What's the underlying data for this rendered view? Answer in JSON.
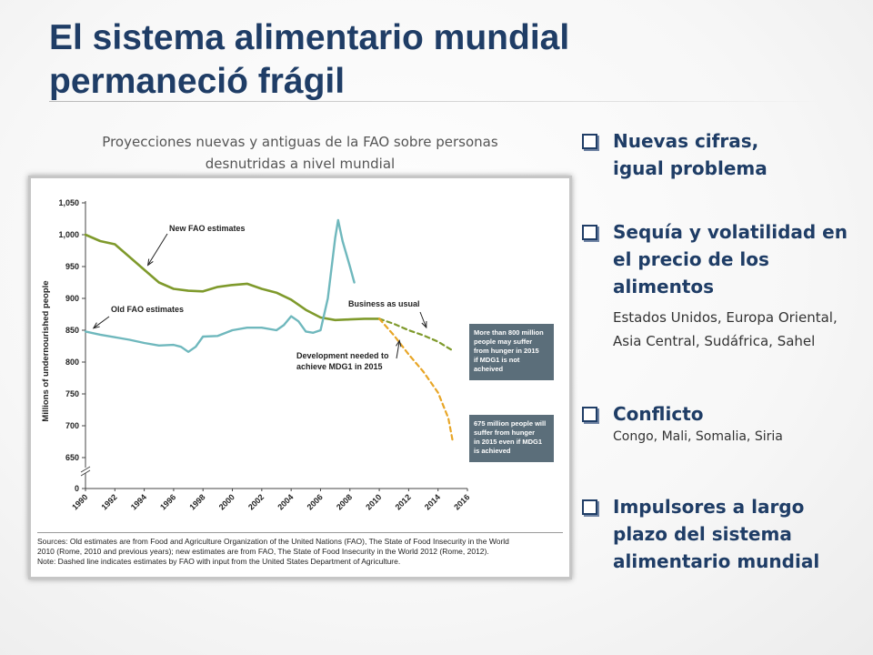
{
  "slide": {
    "title_line1": "El sistema alimentario mundial",
    "title_line2": "permaneció frágil",
    "subtitle_line1": "Proyecciones nuevas y antiguas de la FAO sobre personas",
    "subtitle_line2": "desnutridas a nivel mundial"
  },
  "bullets": [
    {
      "head_lines": [
        "Nuevas cifras,",
        "igual problema"
      ],
      "detail_lines": []
    },
    {
      "head_lines": [
        "Sequía y volatilidad en",
        "el precio de los",
        "alimentos"
      ],
      "detail_lines": [
        "Estados Unidos, Europa Oriental,",
        "Asia Central, Sudáfrica, Sahel"
      ]
    },
    {
      "head_lines": [
        "Conflicto"
      ],
      "detail_lines": [
        "Congo, Mali, Somalia, Siria"
      ]
    },
    {
      "head_lines": [
        "Impulsores a largo",
        "plazo del sistema",
        "alimentario mundial"
      ],
      "detail_lines": []
    }
  ],
  "colors": {
    "title": "#1f3d66",
    "new_series": "#7f9a2c",
    "old_series": "#6fb8bd",
    "mdg_series": "#e8a627",
    "callout_box": "#5b6e7a",
    "bullet_box": "#1f3d66"
  },
  "icons": {
    "bullet": "square-checkbox-icon"
  },
  "chart_data": {
    "type": "line",
    "ylabel": "Millions of undernourished people",
    "xlabel": "",
    "ylim": [
      650,
      1050
    ],
    "y_ticks": [
      "1,050",
      "1,000",
      "950",
      "900",
      "850",
      "800",
      "750",
      "700",
      "650",
      "0"
    ],
    "x_ticks": [
      "1990",
      "1992",
      "1994",
      "1996",
      "1998",
      "2000",
      "2002",
      "2004",
      "2006",
      "2008",
      "2010",
      "2012",
      "2014",
      "2016"
    ],
    "axis_break": true,
    "grid": false,
    "series": [
      {
        "key": "new",
        "name": "New FAO estimates",
        "dashed": false,
        "points": [
          [
            1990,
            1000
          ],
          [
            1991,
            990
          ],
          [
            1992,
            985
          ],
          [
            1993,
            965
          ],
          [
            1994,
            945
          ],
          [
            1995,
            925
          ],
          [
            1996,
            915
          ],
          [
            1997,
            912
          ],
          [
            1998,
            911
          ],
          [
            1999,
            918
          ],
          [
            2000,
            921
          ],
          [
            2001,
            923
          ],
          [
            2002,
            915
          ],
          [
            2003,
            909
          ],
          [
            2004,
            898
          ],
          [
            2005,
            882
          ],
          [
            2006,
            870
          ],
          [
            2007,
            866
          ],
          [
            2008,
            867
          ],
          [
            2009,
            868
          ],
          [
            2010,
            868
          ]
        ]
      },
      {
        "key": "old",
        "name": "Old FAO estimates",
        "dashed": false,
        "points": [
          [
            1990,
            848
          ],
          [
            1991,
            843
          ],
          [
            1992,
            839
          ],
          [
            1993,
            835
          ],
          [
            1994,
            830
          ],
          [
            1995,
            826
          ],
          [
            1996,
            827
          ],
          [
            1996.5,
            824
          ],
          [
            1997,
            816
          ],
          [
            1997.5,
            824
          ],
          [
            1998,
            840
          ],
          [
            1999,
            841
          ],
          [
            2000,
            850
          ],
          [
            2001,
            854
          ],
          [
            2002,
            854
          ],
          [
            2003,
            850
          ],
          [
            2003.5,
            858
          ],
          [
            2004,
            872
          ],
          [
            2004.5,
            864
          ],
          [
            2005,
            848
          ],
          [
            2005.5,
            846
          ],
          [
            2006,
            850
          ],
          [
            2006.5,
            900
          ],
          [
            2007,
            995
          ],
          [
            2007.2,
            1023
          ],
          [
            2007.5,
            990
          ],
          [
            2008,
            950
          ],
          [
            2008.3,
            925
          ]
        ]
      },
      {
        "key": "bau",
        "name": "Business as usual",
        "dashed": true,
        "points": [
          [
            2010,
            868
          ],
          [
            2011,
            860
          ],
          [
            2012,
            850
          ],
          [
            2013,
            842
          ],
          [
            2014,
            832
          ],
          [
            2015,
            818
          ]
        ]
      },
      {
        "key": "mdg",
        "name": "Development needed to achieve MDG1 in 2015",
        "dashed": true,
        "points": [
          [
            2010,
            868
          ],
          [
            2011,
            842
          ],
          [
            2012,
            812
          ],
          [
            2013,
            785
          ],
          [
            2014,
            752
          ],
          [
            2014.7,
            712
          ],
          [
            2015,
            676
          ]
        ]
      }
    ],
    "annotations": [
      {
        "key": "new",
        "text": "New FAO estimates",
        "point": [
          1994,
          945
        ]
      },
      {
        "key": "old",
        "text": "Old FAO estimates",
        "point": [
          1990.3,
          849
        ]
      },
      {
        "key": "bau",
        "text": "Business as usual",
        "point": [
          2013.2,
          850
        ]
      },
      {
        "key": "mdg",
        "text_lines": [
          "Development needed to",
          "achieve MDG1 in 2015"
        ],
        "point": [
          2011.5,
          838
        ]
      }
    ],
    "callouts": [
      {
        "lines": [
          "More than 800 million",
          "people may suffer",
          "from hunger in 2015",
          "if MDG1 is not",
          "acheived"
        ]
      },
      {
        "lines": [
          "675 million people will",
          "suffer from hunger",
          "in 2015 even if MDG1",
          "is achieved"
        ]
      }
    ],
    "sources": {
      "lines": [
        "Sources: Old estimates are from Food and Agriculture Organization of the United Nations (FAO), The State of Food Insecurity in the World",
        "2010 (Rome, 2010 and previous years); new estimates are from FAO, The State of Food Insecurity in the World 2012 (Rome, 2012).",
        "Note: Dashed line indicates estimates by FAO with input from the United States Department of Agriculture."
      ]
    }
  }
}
